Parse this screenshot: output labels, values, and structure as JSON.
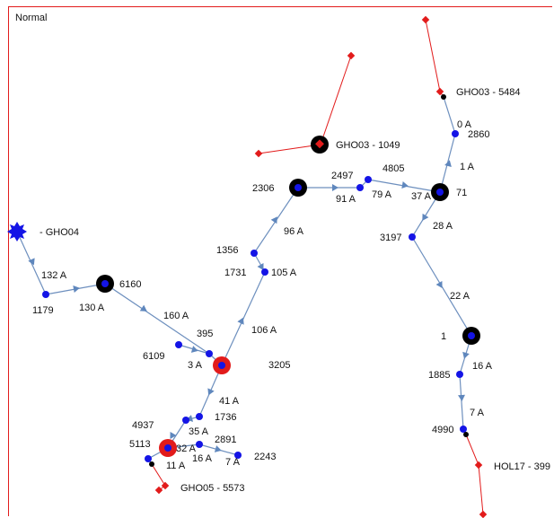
{
  "mode": "Normal",
  "colors": {
    "line": "#6d8fbe",
    "arrow": "#5f87bd",
    "node": "#1414e6",
    "red": "#e21b1b",
    "black": "#000000"
  },
  "nodes": {
    "n6160": "6160",
    "n1179": "1179",
    "n6109": "6109",
    "n3205": "3205",
    "n395": "395",
    "n1356": "1356",
    "n1731": "1731",
    "n2306": "2306",
    "n2497": "2497",
    "n4805": "4805",
    "n2860": "2860",
    "n71": "71",
    "n3197": "3197",
    "n1": "1",
    "n1885": "1885",
    "n4990": "4990",
    "n4937": "4937",
    "n1736": "1736",
    "n5113": "5113",
    "n2891": "2891",
    "n2243": "2243"
  },
  "sources": {
    "gho04": "- GHO04",
    "gho03_5484": "GHO03 - 5484",
    "gho03_1049": "GHO03 - 1049",
    "gho05_5573": "GHO05 - 5573",
    "hol17": "HOL17 - 399"
  },
  "currents": {
    "c132": "132 A",
    "c130": "130 A",
    "c160": "160 A",
    "c3": "3 A",
    "c106": "106 A",
    "c105": "105 A",
    "c96": "96 A",
    "c91": "91 A",
    "c79": "79 A",
    "c37": "37 A",
    "c0": "0 A",
    "c1": "1 A",
    "c28": "28 A",
    "c22": "22 A",
    "c16r": "16 A",
    "c7r": "7 A",
    "c41": "41 A",
    "c35": "35 A",
    "c32": "32 A",
    "c16b": "16 A",
    "c7b": "7 A",
    "c11": "11 A"
  }
}
